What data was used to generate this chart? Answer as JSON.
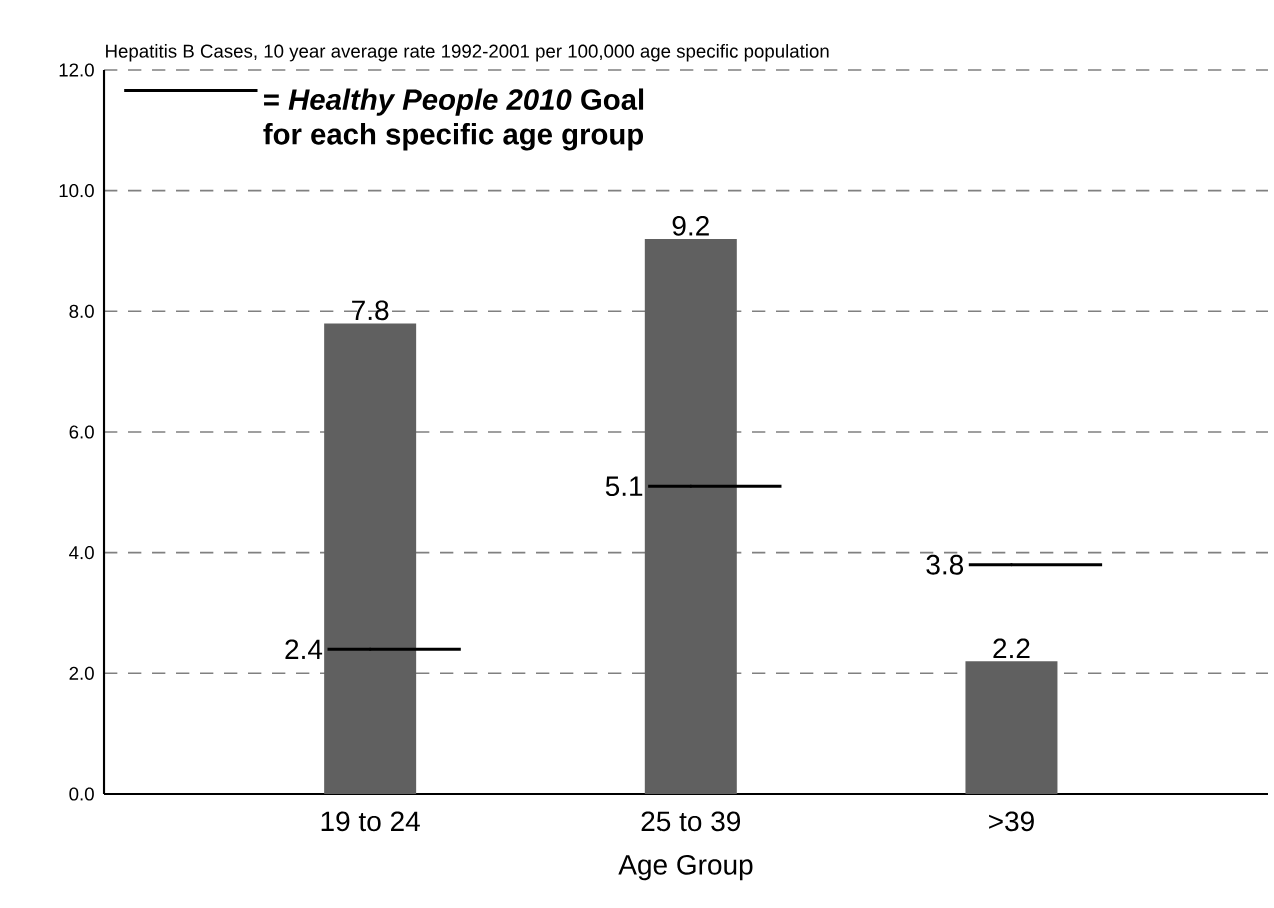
{
  "chart_data": {
    "type": "bar",
    "subtitle": "Hepatitis B Cases, 10 year average rate 1992-2001 per 100,000 age specific population",
    "xlabel": "Age Group",
    "categories": [
      "19 to 24",
      "25 to 39",
      ">39"
    ],
    "series": [
      {
        "type": "bar",
        "color": "#606060",
        "values": [
          7.8,
          9.2,
          2.2
        ]
      },
      {
        "type": "scatter",
        "name": "= *Healthy People 2010* Goal for each specific age group",
        "color": "#000000",
        "values": [
          2.4,
          5.1,
          3.8
        ]
      }
    ],
    "ylim": [
      0,
      12
    ],
    "yticks": [
      {
        "value": 0,
        "label": "0.0"
      },
      {
        "value": 2,
        "label": "2.0"
      },
      {
        "value": 4,
        "label": "4.0"
      },
      {
        "value": 6,
        "label": "6.0"
      },
      {
        "value": 8,
        "label": "8.0"
      },
      {
        "value": 10,
        "label": "10.0"
      },
      {
        "value": 12,
        "label": "12.0"
      }
    ],
    "grid": "y",
    "legend": "top left",
    "data_labels": true
  }
}
